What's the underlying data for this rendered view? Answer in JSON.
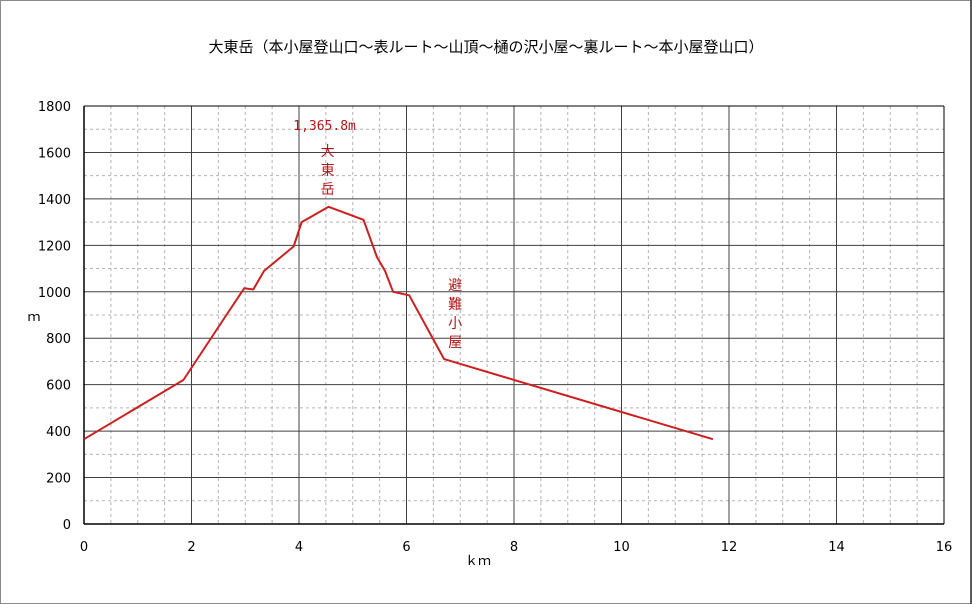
{
  "chart_data": {
    "type": "line",
    "title": "大東岳（本小屋登山口〜表ルート〜山頂〜樋の沢小屋〜裏ルート〜本小屋登山口）",
    "xlabel": "ｋｍ",
    "ylabel": "ｍ",
    "xlim": [
      0,
      16
    ],
    "ylim": [
      0,
      1800
    ],
    "x_ticks": [
      "0",
      "2",
      "4",
      "6",
      "8",
      "10",
      "12",
      "14",
      "16"
    ],
    "y_ticks": [
      "0",
      "200",
      "400",
      "600",
      "800",
      "1000",
      "1200",
      "1400",
      "1600",
      "1800"
    ],
    "grid": true,
    "series": [
      {
        "color": "#cc1f1f",
        "points": [
          [
            0.0,
            365
          ],
          [
            1.85,
            620
          ],
          [
            2.65,
            900
          ],
          [
            2.98,
            1015
          ],
          [
            3.15,
            1010
          ],
          [
            3.35,
            1090
          ],
          [
            3.9,
            1195
          ],
          [
            4.05,
            1300
          ],
          [
            4.55,
            1366
          ],
          [
            5.2,
            1310
          ],
          [
            5.45,
            1150
          ],
          [
            5.6,
            1090
          ],
          [
            5.75,
            1000
          ],
          [
            6.05,
            985
          ],
          [
            6.7,
            710
          ],
          [
            11.7,
            365
          ]
        ]
      }
    ],
    "annotations": [
      {
        "text": "1,365.8m",
        "x": 4.55,
        "y": 1366
      },
      {
        "text": "大東岳",
        "x": 4.55,
        "y": 1366
      },
      {
        "text": "避難小屋",
        "x": 6.7,
        "y": 710
      }
    ]
  }
}
